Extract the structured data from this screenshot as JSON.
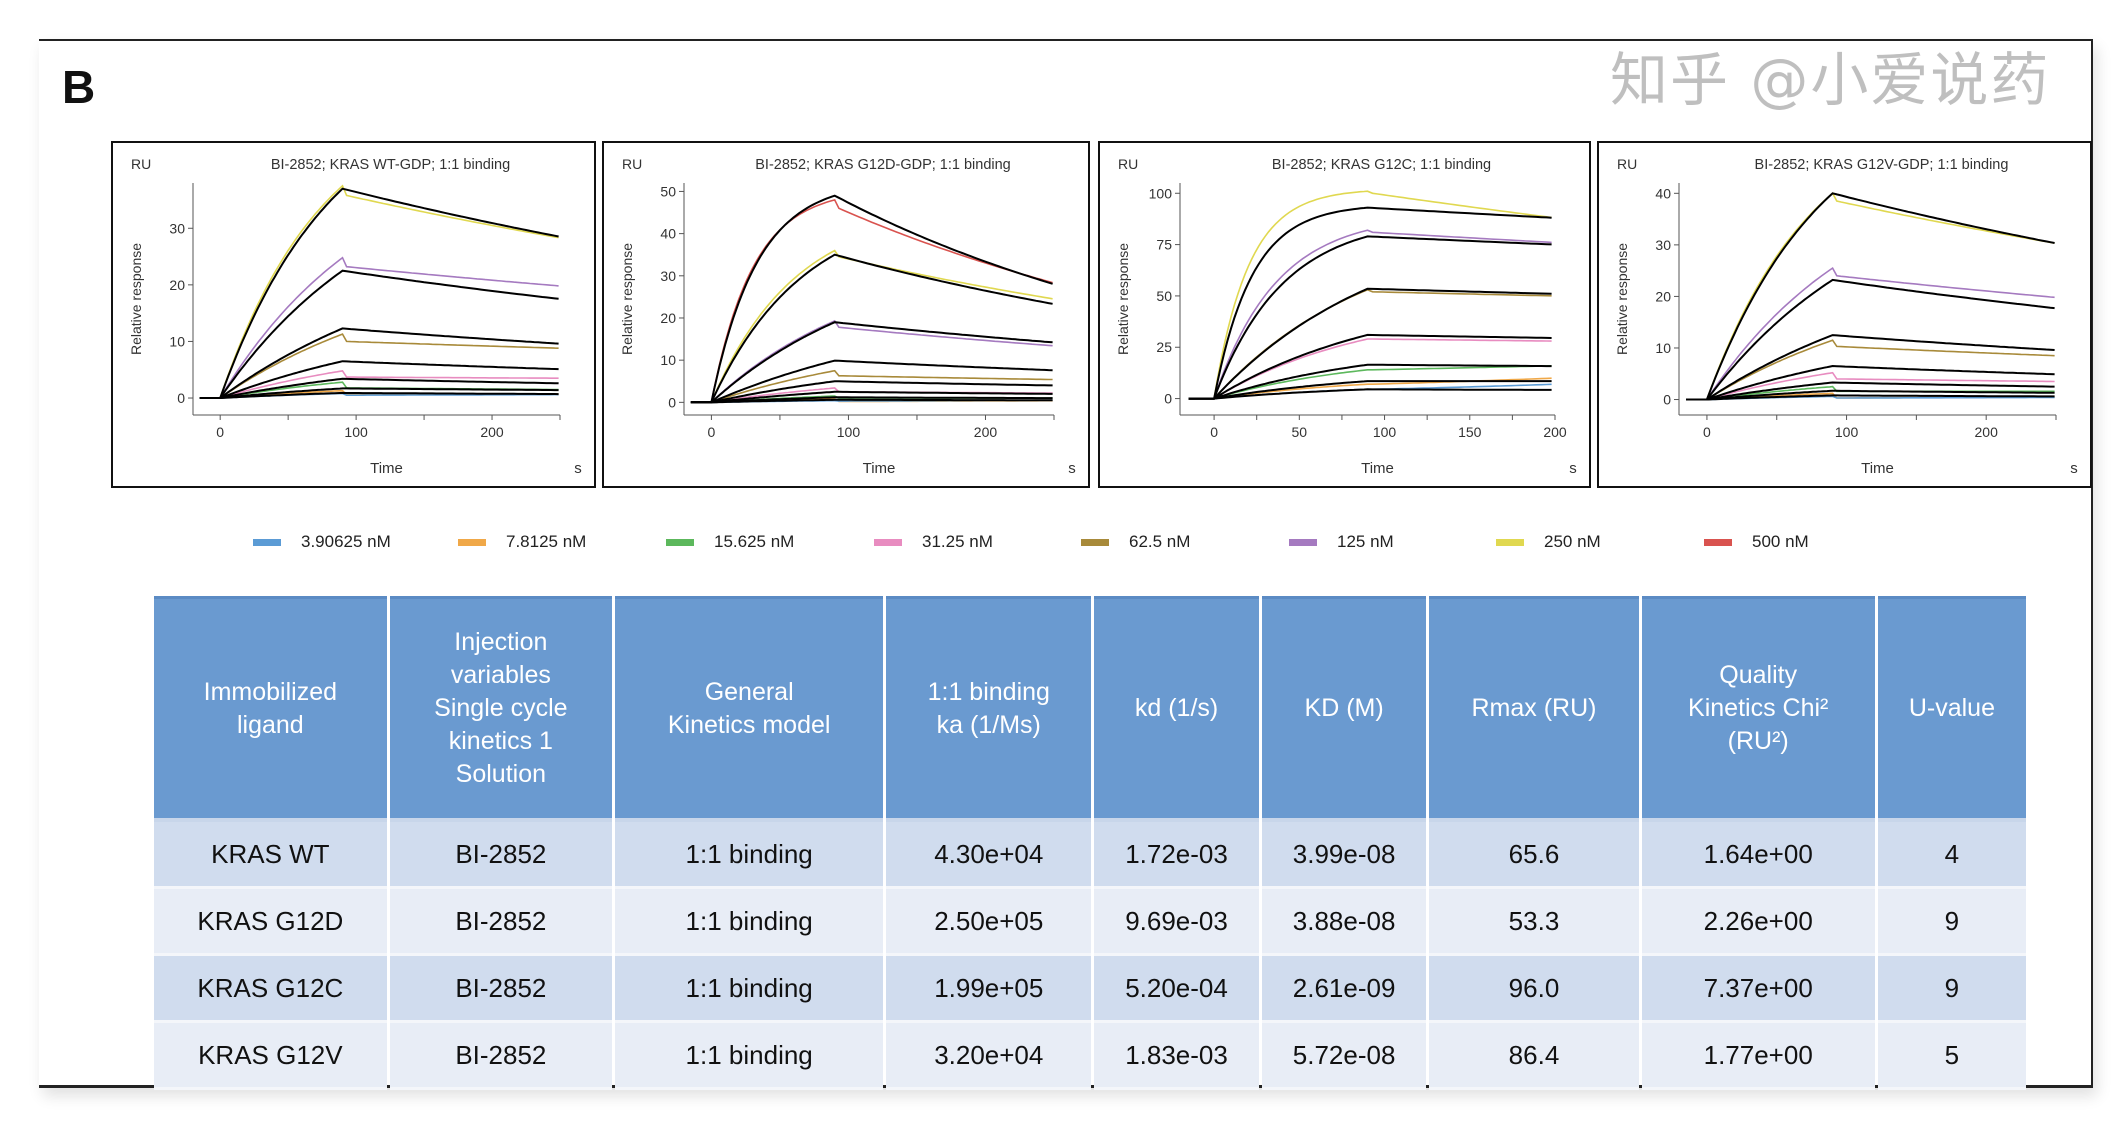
{
  "figure_label": "B",
  "legend": [
    {
      "label": "3.90625 nM",
      "color": "#5b9bd5"
    },
    {
      "label": "7.8125 nM",
      "color": "#f0a848"
    },
    {
      "label": "15.625 nM",
      "color": "#5cb85c"
    },
    {
      "label": "31.25 nM",
      "color": "#e88cc0"
    },
    {
      "label": "62.5 nM",
      "color": "#a88a3a"
    },
    {
      "label": "125 nM",
      "color": "#a57ac0"
    },
    {
      "label": "250 nM",
      "color": "#e0d850"
    },
    {
      "label": "500 nM",
      "color": "#d9534f"
    }
  ],
  "chart_data": [
    {
      "type": "line",
      "title": "BI-2852; KRAS WT-GDP; 1:1 binding",
      "unit_label": "RU",
      "ylabel": "Relative response",
      "xlabel": "Time",
      "x_unit": "s",
      "xlim": [
        -20,
        250
      ],
      "ylim": [
        -3,
        38
      ],
      "xticks": [
        0,
        100,
        200
      ],
      "yticks": [
        0,
        10,
        20,
        30
      ],
      "injection_end": 90,
      "series": [
        {
          "name": "250 nM",
          "fit": [
            37,
            28.5
          ],
          "data": [
            37.5,
            35.8,
            28.3
          ],
          "curvature": 0.012
        },
        {
          "name": "125 nM",
          "fit": [
            22.5,
            17.5
          ],
          "data": [
            24.8,
            23.2,
            19.8
          ],
          "curvature": 0.008
        },
        {
          "name": "62.5 nM",
          "fit": [
            12.3,
            9.6
          ],
          "data": [
            11.3,
            10,
            8.8
          ],
          "curvature": 0.006
        },
        {
          "name": "31.25 nM",
          "fit": [
            6.5,
            5.1
          ],
          "data": [
            4.8,
            3.7,
            3.5
          ],
          "curvature": 0.006
        },
        {
          "name": "15.625 nM",
          "fit": [
            3.4,
            2.6
          ],
          "data": [
            2.8,
            1.8,
            1.5
          ],
          "curvature": 0.006
        },
        {
          "name": "7.8125 nM",
          "fit": [
            1.7,
            1.4
          ],
          "data": [
            1.3,
            0.6,
            0.7
          ],
          "curvature": 0.006
        },
        {
          "name": "3.90625 nM",
          "fit": [
            0.9,
            0.7
          ],
          "data": [
            0.8,
            0.5,
            0.6
          ],
          "curvature": 0.006
        }
      ]
    },
    {
      "type": "line",
      "title": "BI-2852; KRAS G12D-GDP; 1:1 binding",
      "unit_label": "RU",
      "ylabel": "Relative response",
      "xlabel": "Time",
      "x_unit": "s",
      "xlim": [
        -20,
        250
      ],
      "ylim": [
        -3,
        52
      ],
      "xticks": [
        0,
        100,
        200
      ],
      "yticks": [
        0,
        10,
        20,
        30,
        40,
        50
      ],
      "injection_end": 90,
      "series": [
        {
          "name": "500 nM",
          "fit": [
            49,
            28
          ],
          "data": [
            48,
            46,
            28.3
          ],
          "curvature": 0.03
        },
        {
          "name": "250 nM",
          "fit": [
            35,
            23.3
          ],
          "data": [
            36,
            34.5,
            24.5
          ],
          "curvature": 0.015
        },
        {
          "name": "125 nM",
          "fit": [
            19,
            14.2
          ],
          "data": [
            19.3,
            17.8,
            13.4
          ],
          "curvature": 0.008
        },
        {
          "name": "62.5 nM",
          "fit": [
            9.9,
            7.6
          ],
          "data": [
            7.5,
            6.3,
            5.4
          ],
          "curvature": 0.006
        },
        {
          "name": "31.25 nM",
          "fit": [
            5,
            4
          ],
          "data": [
            3.4,
            2.5,
            2.2
          ],
          "curvature": 0.006
        },
        {
          "name": "15.625 nM",
          "fit": [
            2.5,
            2
          ],
          "data": [
            1.5,
            1,
            1
          ],
          "curvature": 0.006
        },
        {
          "name": "7.8125 nM",
          "fit": [
            1.2,
            1
          ],
          "data": [
            0.8,
            0.2,
            0.4
          ],
          "curvature": 0.006
        },
        {
          "name": "3.90625 nM",
          "fit": [
            0.6,
            0.5
          ],
          "data": [
            0.4,
            0.3,
            0.5
          ],
          "curvature": 0.006
        }
      ]
    },
    {
      "type": "line",
      "title": "BI-2852; KRAS G12C; 1:1 binding",
      "unit_label": "RU",
      "ylabel": "Relative response",
      "xlabel": "Time",
      "x_unit": "s",
      "xlim": [
        -20,
        200
      ],
      "ylim": [
        -8,
        105
      ],
      "xticks": [
        0,
        50,
        100,
        150,
        200
      ],
      "yticks": [
        0,
        25,
        50,
        75,
        100
      ],
      "injection_end": 90,
      "series": [
        {
          "name": "250 nM",
          "fit": [
            93,
            88
          ],
          "data": [
            101,
            100,
            88
          ],
          "curvature": 0.045
        },
        {
          "name": "125 nM",
          "fit": [
            79,
            75
          ],
          "data": [
            82,
            81,
            76
          ],
          "curvature": 0.025
        },
        {
          "name": "62.5 nM",
          "fit": [
            53.5,
            51
          ],
          "data": [
            53,
            52,
            50
          ],
          "curvature": 0.01
        },
        {
          "name": "31.25 nM",
          "fit": [
            31,
            29.5
          ],
          "data": [
            29,
            29,
            28
          ],
          "curvature": 0.01
        },
        {
          "name": "15.625 nM",
          "fit": [
            16.5,
            15.8
          ],
          "data": [
            14,
            14,
            16
          ],
          "curvature": 0.01
        },
        {
          "name": "7.8125 nM",
          "fit": [
            8.5,
            8.5
          ],
          "data": [
            7,
            7,
            10
          ],
          "curvature": 0.01
        },
        {
          "name": "3.90625 nM",
          "fit": [
            4.5,
            4.2
          ],
          "data": [
            4.5,
            4.5,
            7
          ],
          "curvature": 0.01
        }
      ]
    },
    {
      "type": "line",
      "title": "BI-2852; KRAS G12V-GDP; 1:1 binding",
      "unit_label": "RU",
      "ylabel": "Relative response",
      "xlabel": "Time",
      "x_unit": "s",
      "xlim": [
        -20,
        250
      ],
      "ylim": [
        -3,
        42
      ],
      "xticks": [
        0,
        100,
        200
      ],
      "yticks": [
        0,
        10,
        20,
        30,
        40
      ],
      "injection_end": 90,
      "series": [
        {
          "name": "250 nM",
          "fit": [
            40,
            30.3
          ],
          "data": [
            40,
            38.5,
            30.3
          ],
          "curvature": 0.012
        },
        {
          "name": "125 nM",
          "fit": [
            23.2,
            17.7
          ],
          "data": [
            25.5,
            24,
            19.8
          ],
          "curvature": 0.008
        },
        {
          "name": "62.5 nM",
          "fit": [
            12.5,
            9.6
          ],
          "data": [
            11.5,
            10.3,
            8.5
          ],
          "curvature": 0.006
        },
        {
          "name": "31.25 nM",
          "fit": [
            6.5,
            4.9
          ],
          "data": [
            5.2,
            4,
            3.5
          ],
          "curvature": 0.006
        },
        {
          "name": "15.625 nM",
          "fit": [
            3.3,
            2.5
          ],
          "data": [
            2.5,
            1.6,
            1.6
          ],
          "curvature": 0.006
        },
        {
          "name": "7.8125 nM",
          "fit": [
            1.7,
            1.3
          ],
          "data": [
            1.2,
            0.3,
            0.5
          ],
          "curvature": 0.006
        },
        {
          "name": "3.90625 nM",
          "fit": [
            0.8,
            0.6
          ],
          "data": [
            0.6,
            0.3,
            0.4
          ],
          "curvature": 0.006
        }
      ]
    }
  ],
  "table": {
    "headers": [
      [
        "Immobilized",
        "ligand"
      ],
      [
        "Injection",
        "variables",
        "Single cycle",
        "kinetics 1",
        "Solution"
      ],
      [
        "General",
        "Kinetics model"
      ],
      [
        "1:1 binding",
        "ka (1/Ms)"
      ],
      [
        "kd (1/s)"
      ],
      [
        "KD (M)"
      ],
      [
        "Rmax (RU)"
      ],
      [
        "Quality",
        "Kinetics Chi²",
        "(RU²)"
      ],
      [
        "U-value"
      ]
    ],
    "rows": [
      [
        "KRAS WT",
        "BI-2852",
        "1:1 binding",
        "4.30e+04",
        "1.72e-03",
        "3.99e-08",
        "65.6",
        "1.64e+00",
        "4"
      ],
      [
        "KRAS G12D",
        "BI-2852",
        "1:1 binding",
        "2.50e+05",
        "9.69e-03",
        "3.88e-08",
        "53.3",
        "2.26e+00",
        "9"
      ],
      [
        "KRAS G12C",
        "BI-2852",
        "1:1 binding",
        "1.99e+05",
        "5.20e-04",
        "2.61e-09",
        "96.0",
        "7.37e+00",
        "9"
      ],
      [
        "KRAS G12V",
        "BI-2852",
        "1:1 binding",
        "3.20e+04",
        "1.83e-03",
        "5.72e-08",
        "86.4",
        "1.77e+00",
        "5"
      ]
    ]
  },
  "watermark": "知乎 @小爱说药"
}
